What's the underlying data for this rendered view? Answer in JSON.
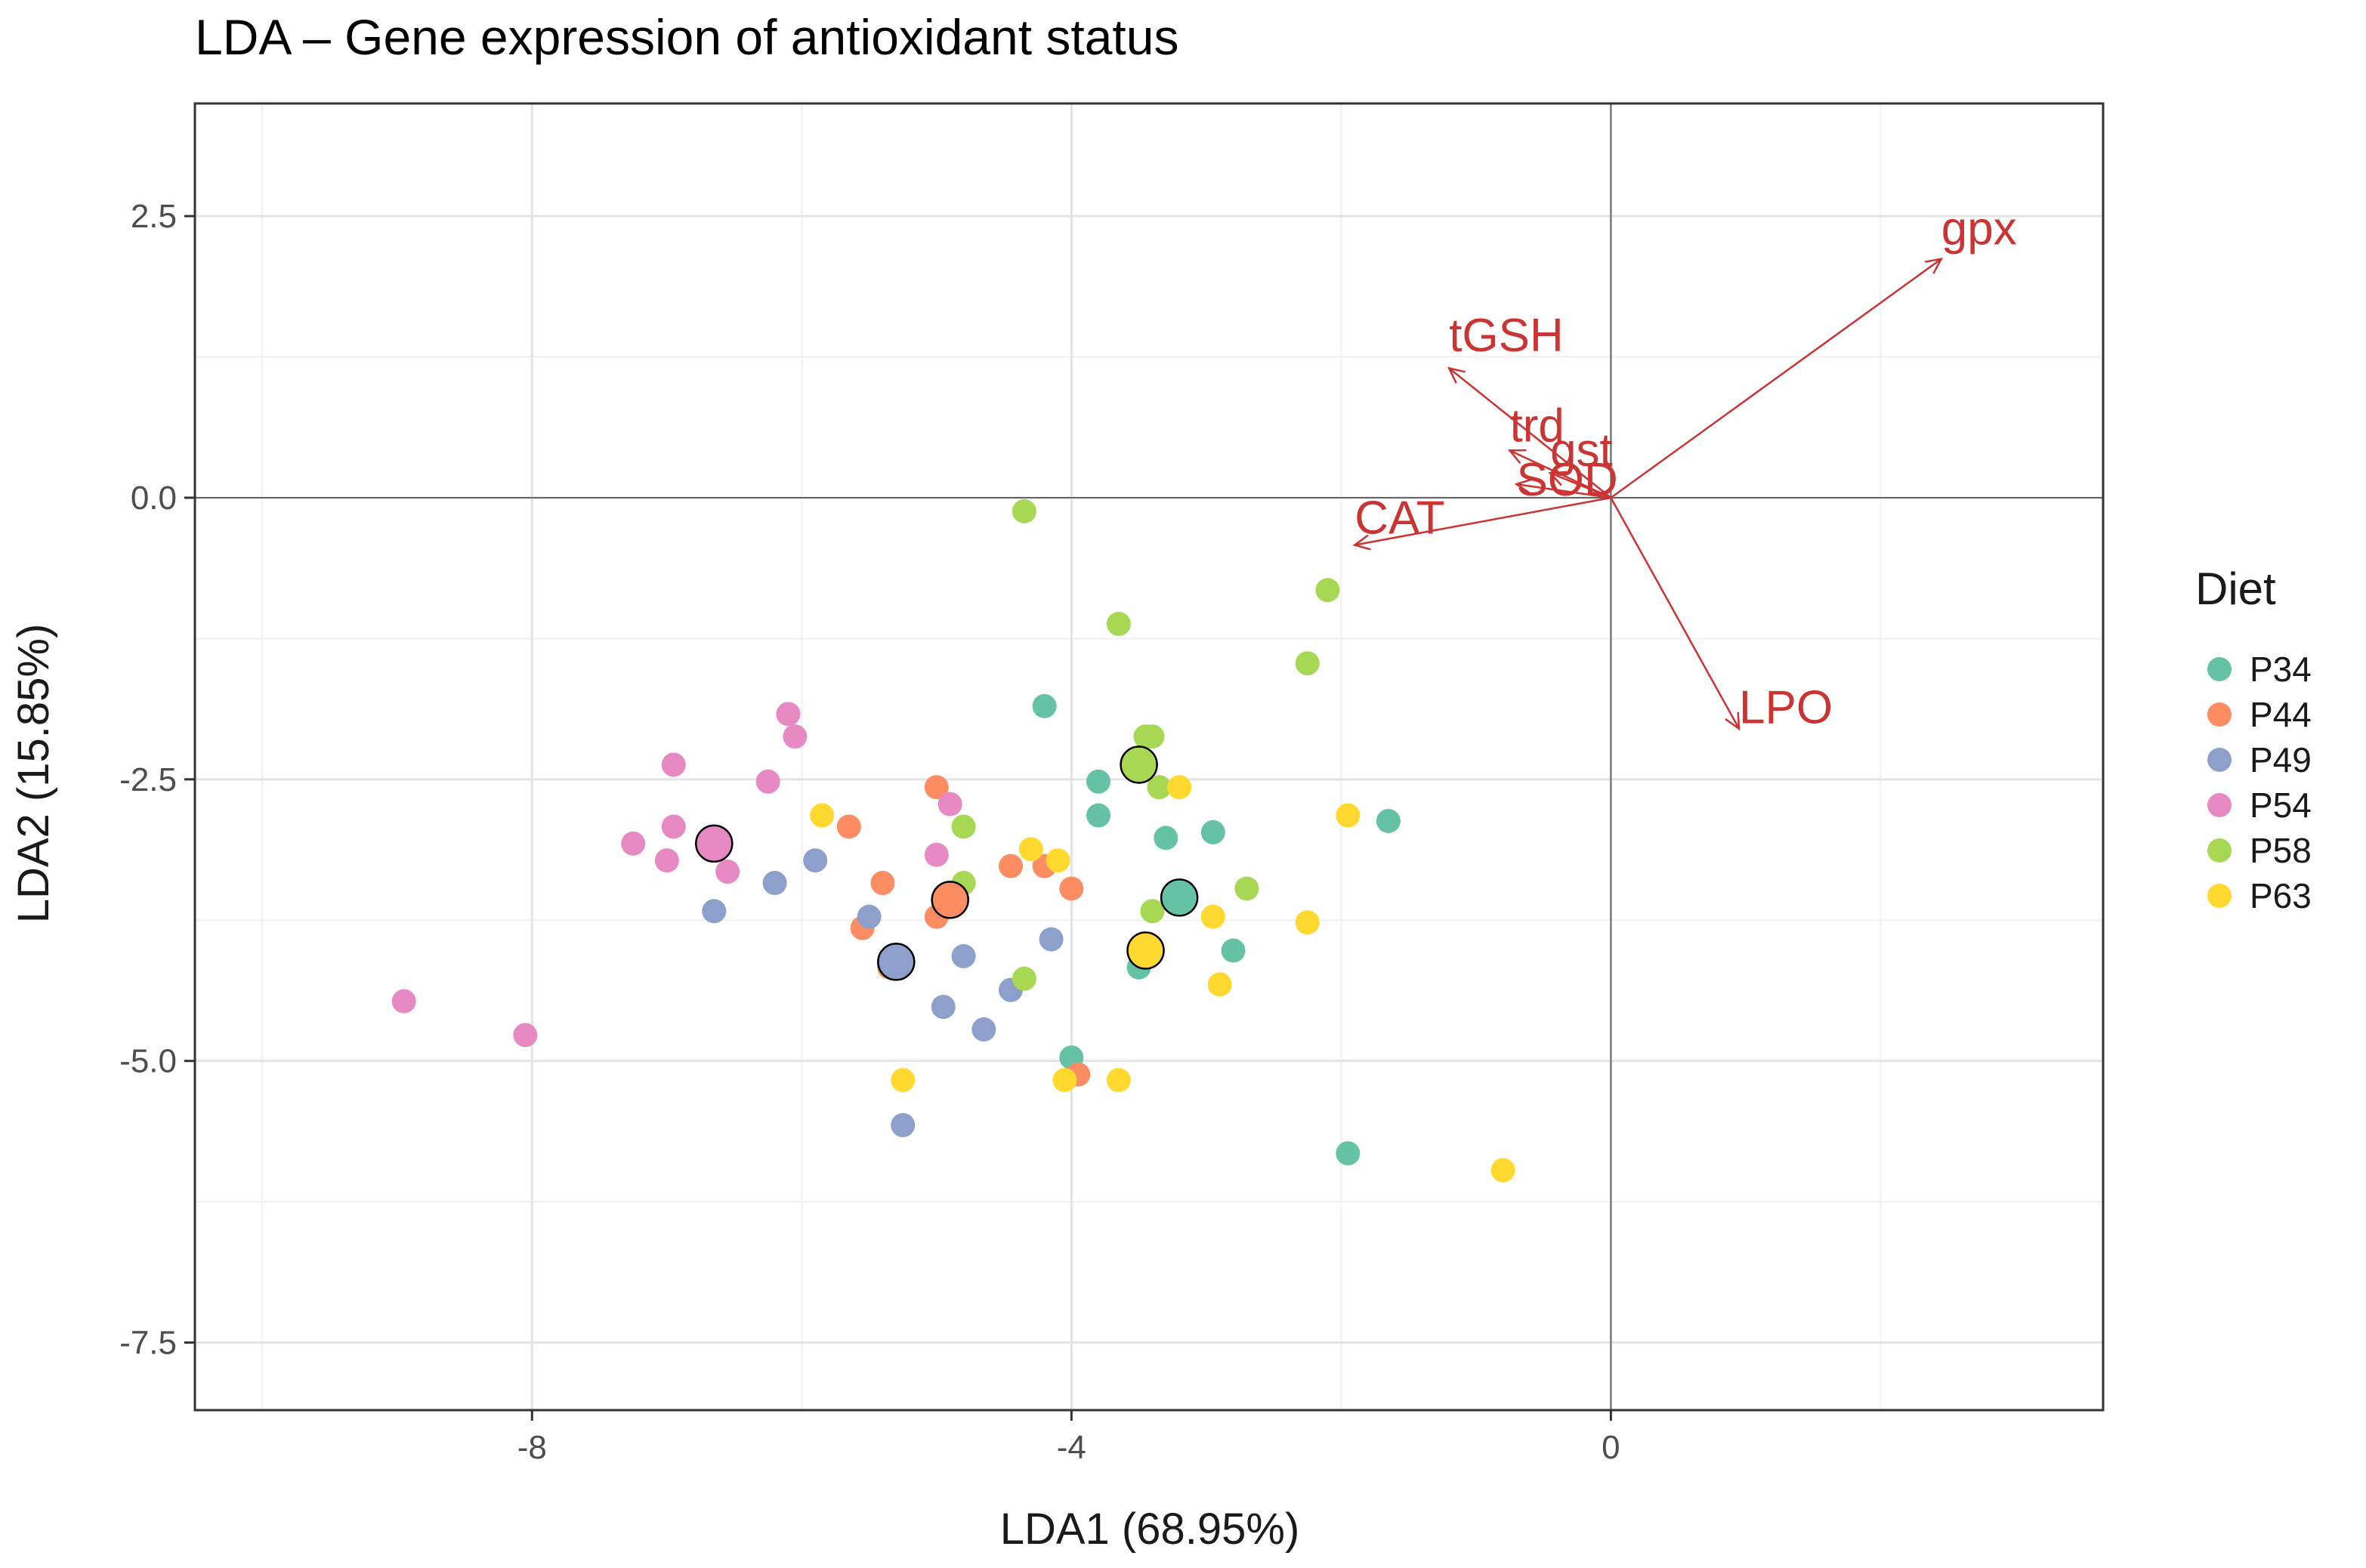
{
  "chart_data": {
    "type": "scatter",
    "title": "LDA – Gene expression of antioxidant status",
    "xlabel": "LDA1 (68.95%)",
    "ylabel": "LDA2 (15.85%)",
    "xlim": [
      -10.5,
      3.65
    ],
    "ylim": [
      -8.1,
      3.5
    ],
    "x_ticks": [
      -8,
      -4,
      0
    ],
    "x_tick_labels": [
      "-8",
      "-4",
      "0"
    ],
    "y_ticks": [
      2.5,
      0.0,
      -2.5,
      -5.0,
      -7.5
    ],
    "y_tick_labels": [
      "2.5",
      "0.0",
      "-2.5",
      "-5.0",
      "-7.5"
    ],
    "x_minor_ticks": [
      -10,
      -6,
      -2,
      2
    ],
    "y_minor_ticks": [
      1.25,
      -1.25,
      -3.75,
      -6.25
    ],
    "grid": true,
    "reference_lines": {
      "x": 0,
      "y": 0
    },
    "legend": {
      "title": "Diet",
      "position": "right",
      "entries": [
        {
          "label": "P34",
          "color": "#66c2a5"
        },
        {
          "label": "P44",
          "color": "#fc8d62"
        },
        {
          "label": "P49",
          "color": "#8da0cb"
        },
        {
          "label": "P54",
          "color": "#e78ac3"
        },
        {
          "label": "P58",
          "color": "#a6d854"
        },
        {
          "label": "P63",
          "color": "#ffd92f"
        }
      ]
    },
    "series": [
      {
        "name": "P34",
        "color": "#66c2a5",
        "centroid": [
          -3.2,
          -3.55
        ],
        "points": [
          [
            -4.2,
            -1.85
          ],
          [
            -3.8,
            -2.52
          ],
          [
            -3.8,
            -2.82
          ],
          [
            -3.3,
            -3.02
          ],
          [
            -2.95,
            -2.97
          ],
          [
            -1.65,
            -2.87
          ],
          [
            -2.8,
            -4.02
          ],
          [
            -3.5,
            -4.17
          ],
          [
            -4.0,
            -4.97
          ],
          [
            -1.95,
            -5.82
          ]
        ]
      },
      {
        "name": "P44",
        "color": "#fc8d62",
        "centroid": [
          -4.9,
          -3.57
        ],
        "points": [
          [
            -5.65,
            -2.92
          ],
          [
            -5.0,
            -2.57
          ],
          [
            -4.45,
            -3.27
          ],
          [
            -4.2,
            -3.27
          ],
          [
            -4.0,
            -3.47
          ],
          [
            -5.4,
            -3.42
          ],
          [
            -5.55,
            -3.82
          ],
          [
            -5.35,
            -4.17
          ],
          [
            -5.0,
            -3.72
          ],
          [
            -3.95,
            -5.12
          ]
        ]
      },
      {
        "name": "P49",
        "color": "#8da0cb",
        "centroid": [
          -5.3,
          -4.12
        ],
        "points": [
          [
            -5.9,
            -3.22
          ],
          [
            -6.2,
            -3.42
          ],
          [
            -6.65,
            -3.67
          ],
          [
            -5.5,
            -3.72
          ],
          [
            -4.8,
            -4.07
          ],
          [
            -4.15,
            -3.92
          ],
          [
            -4.95,
            -4.52
          ],
          [
            -4.45,
            -4.37
          ],
          [
            -4.65,
            -4.72
          ],
          [
            -5.25,
            -5.57
          ]
        ]
      },
      {
        "name": "P54",
        "color": "#e78ac3",
        "centroid": [
          -6.65,
          -3.07
        ],
        "points": [
          [
            -6.1,
            -1.92
          ],
          [
            -6.05,
            -2.12
          ],
          [
            -6.95,
            -2.37
          ],
          [
            -6.25,
            -2.52
          ],
          [
            -4.9,
            -2.72
          ],
          [
            -6.95,
            -2.92
          ],
          [
            -7.25,
            -3.07
          ],
          [
            -7.0,
            -3.22
          ],
          [
            -6.55,
            -3.32
          ],
          [
            -5.0,
            -3.17
          ],
          [
            -8.95,
            -4.47
          ],
          [
            -8.05,
            -4.77
          ]
        ]
      },
      {
        "name": "P58",
        "color": "#a6d854",
        "centroid": [
          -3.5,
          -2.37
        ],
        "points": [
          [
            -4.35,
            -0.12
          ],
          [
            -2.1,
            -0.82
          ],
          [
            -2.25,
            -1.47
          ],
          [
            -3.65,
            -1.12
          ],
          [
            -3.45,
            -2.12
          ],
          [
            -3.4,
            -2.12
          ],
          [
            -3.35,
            -2.57
          ],
          [
            -4.8,
            -2.92
          ],
          [
            -4.8,
            -3.42
          ],
          [
            -3.4,
            -3.67
          ],
          [
            -2.7,
            -3.47
          ],
          [
            -4.35,
            -4.27
          ]
        ]
      },
      {
        "name": "P63",
        "color": "#ffd92f",
        "centroid": [
          -3.45,
          -4.02
        ],
        "points": [
          [
            -5.85,
            -2.82
          ],
          [
            -3.2,
            -2.57
          ],
          [
            -1.95,
            -2.82
          ],
          [
            -4.3,
            -3.12
          ],
          [
            -4.1,
            -3.22
          ],
          [
            -2.95,
            -3.72
          ],
          [
            -2.25,
            -3.77
          ],
          [
            -2.9,
            -4.32
          ],
          [
            -5.25,
            -5.17
          ],
          [
            -4.05,
            -5.17
          ],
          [
            -3.65,
            -5.17
          ],
          [
            -0.8,
            -5.97
          ]
        ]
      }
    ],
    "loadings": [
      {
        "label": "gpx",
        "end": [
          2.45,
          2.12
        ],
        "label_pos": [
          2.45,
          2.25
        ]
      },
      {
        "label": "tGSH",
        "end": [
          -1.2,
          1.15
        ],
        "label_pos": [
          -1.2,
          1.3
        ]
      },
      {
        "label": "trd",
        "end": [
          -0.75,
          0.42
        ],
        "label_pos": [
          -0.75,
          0.5
        ]
      },
      {
        "label": "gst",
        "end": [
          -0.45,
          0.22
        ],
        "label_pos": [
          -0.45,
          0.28
        ]
      },
      {
        "label": "SOD",
        "end": [
          -0.7,
          0.12
        ],
        "label_pos": [
          -0.7,
          0.02
        ]
      },
      {
        "label": "CAT",
        "end": [
          -1.9,
          -0.42
        ],
        "label_pos": [
          -1.9,
          -0.32
        ]
      },
      {
        "label": "LPO",
        "end": [
          0.95,
          -2.05
        ],
        "label_pos": [
          0.95,
          -2.0
        ]
      }
    ],
    "loading_color": "#cc3333"
  }
}
